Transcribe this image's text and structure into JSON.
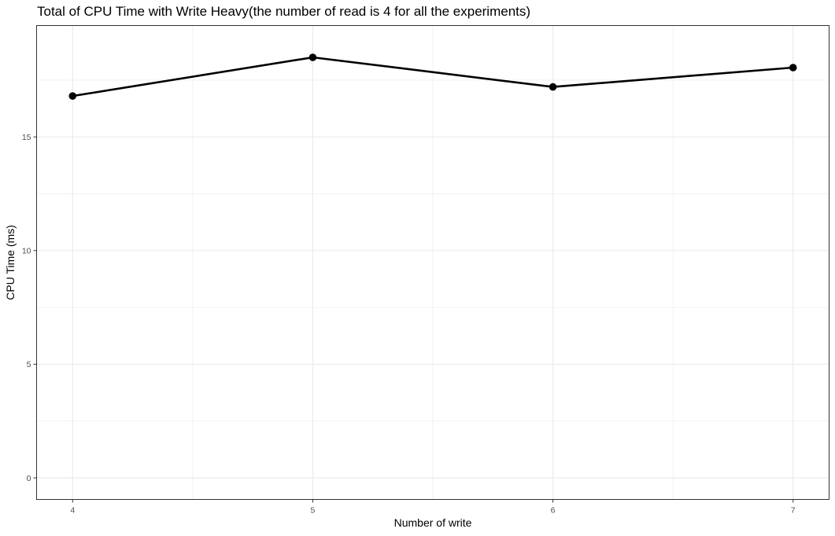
{
  "chart_data": {
    "type": "line",
    "title": "Total of CPU Time with Write Heavy(the number of read is 4 for all the experiments)",
    "xlabel": "Number of write",
    "ylabel": "CPU Time (ms)",
    "x": [
      4,
      5,
      6,
      7
    ],
    "series": [
      {
        "values": [
          16.8,
          18.5,
          17.2,
          18.05
        ]
      }
    ],
    "x_ticks": [
      "4",
      "5",
      "6",
      "7"
    ],
    "y_ticks": [
      "0",
      "5",
      "10",
      "15"
    ],
    "xlim": [
      3.85,
      7.15
    ],
    "ylim": [
      -0.95,
      19.9
    ],
    "grid": true,
    "colors": {
      "line": "#000000",
      "point": "#000000",
      "grid_major": "#ebebeb",
      "grid_minor": "#f2f2f2",
      "panel_border": "#333333",
      "tick_text": "#4d4d4d"
    }
  }
}
